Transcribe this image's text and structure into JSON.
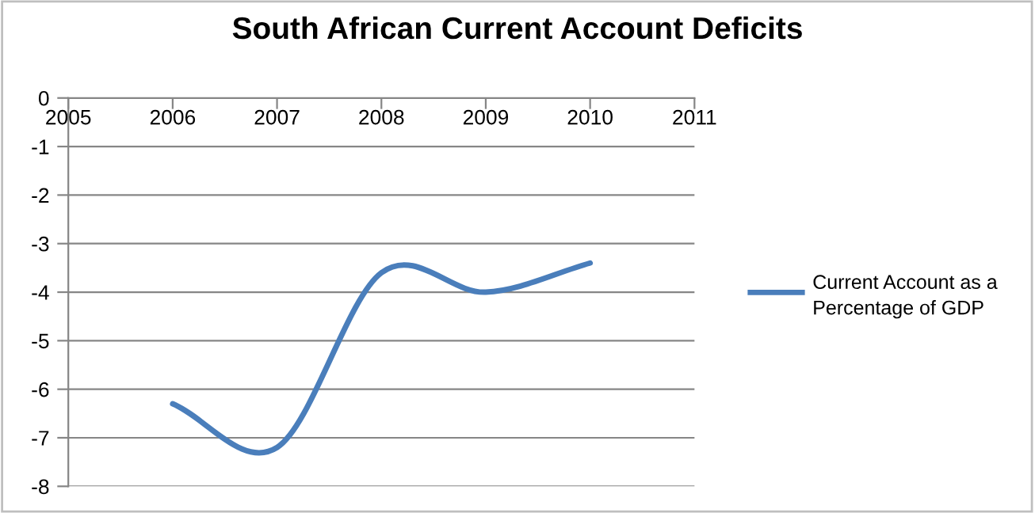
{
  "chart_data": {
    "type": "line",
    "title": "South African Current Account Deficits",
    "x": [
      2006,
      2007,
      2008,
      2009,
      2010
    ],
    "series": [
      {
        "name": "Current Account as a Percentage of GDP",
        "color": "#4a7ebb",
        "values": [
          -6.3,
          -7.2,
          -3.6,
          -4.0,
          -3.4
        ]
      }
    ],
    "xlim": [
      2005,
      2011
    ],
    "xticks": [
      2005,
      2006,
      2007,
      2008,
      2009,
      2010,
      2011
    ],
    "ylim": [
      -8,
      0
    ],
    "yticks": [
      -8,
      -7,
      -6,
      -5,
      -4,
      -3,
      -2,
      -1,
      0
    ],
    "grid": "y",
    "legend": "right",
    "marker": "none",
    "line_style": "solid"
  }
}
